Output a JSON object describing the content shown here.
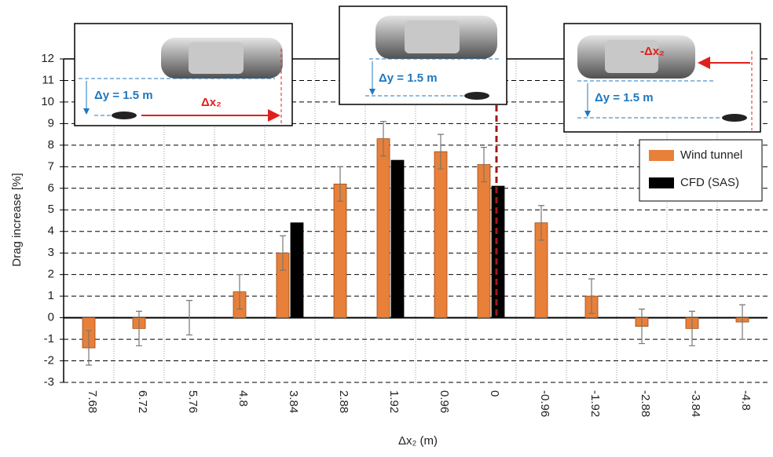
{
  "chart_data": {
    "type": "bar",
    "y_label": "Drag increase [%]",
    "x_label": "Δx₂ (m)",
    "categories": [
      "7.68",
      "6.72",
      "5.76",
      "4.8",
      "3.84",
      "2.88",
      "1.92",
      "0.96",
      "0",
      "-0.96",
      "-1.92",
      "-2.88",
      "-3.84",
      "-4.8"
    ],
    "series": [
      {
        "name": "Wind tunnel",
        "color": "#e8803a",
        "values": [
          -1.4,
          -0.5,
          0,
          1.2,
          3.0,
          6.2,
          8.3,
          7.7,
          7.1,
          4.4,
          1.0,
          -0.4,
          -0.5,
          -0.2
        ],
        "errors": [
          0.8,
          0.8,
          0.8,
          0.8,
          0.8,
          0.8,
          0.8,
          0.8,
          0.8,
          0.8,
          0.8,
          0.8,
          0.8,
          0.8
        ]
      },
      {
        "name": "CFD (SAS)",
        "color": "#000000",
        "values": [
          null,
          null,
          null,
          null,
          4.4,
          null,
          7.3,
          null,
          6.1,
          null,
          null,
          null,
          null,
          null
        ]
      }
    ],
    "ylim": [
      -3,
      12
    ],
    "yticks": [
      -3,
      -2,
      -1,
      0,
      1,
      2,
      3,
      4,
      5,
      6,
      7,
      8,
      9,
      10,
      11,
      12
    ],
    "grid": true,
    "legend": "upper right",
    "insets": [
      {
        "dy": "Δy = 1.5 m",
        "dx": "Δx₂"
      },
      {
        "dy": "Δy = 1.5 m"
      },
      {
        "dy": "Δy = 1.5 m",
        "dx": "-Δx₂"
      }
    ]
  }
}
